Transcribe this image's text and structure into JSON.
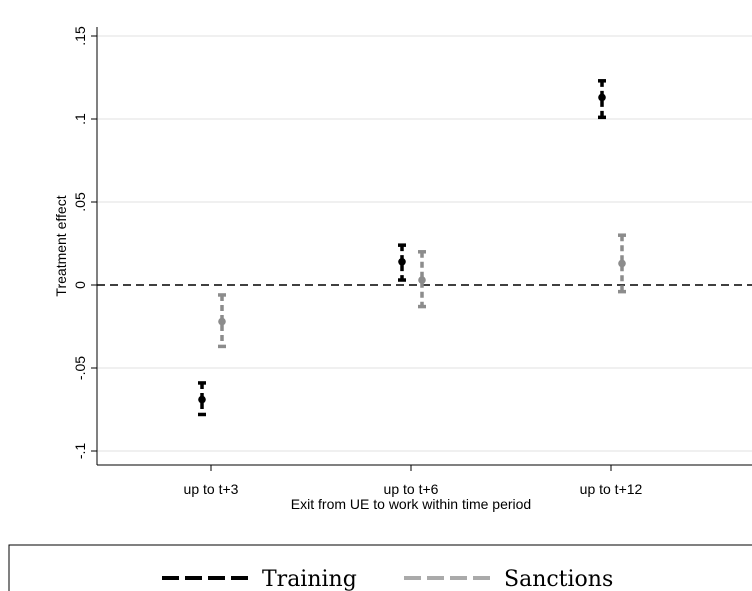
{
  "chart_data": {
    "type": "scatter",
    "title": "",
    "xlabel": "Exit from UE to work within time period",
    "ylabel": "Treatment effect",
    "categories": [
      "up to t+3",
      "up to t+6",
      "up to t+12"
    ],
    "ylim": [
      -0.1,
      0.15
    ],
    "yticks": [
      -0.1,
      -0.05,
      0,
      0.05,
      0.1,
      0.15
    ],
    "ytick_labels": [
      "-.1",
      "-.05",
      "0",
      ".05",
      ".1",
      ".15"
    ],
    "grid": true,
    "reference_line": 0,
    "legend_position": "bottom",
    "series": [
      {
        "name": "Training",
        "color": "#000000",
        "estimates": [
          -0.069,
          0.014,
          0.113
        ],
        "ci_low": [
          -0.078,
          0.003,
          0.101
        ],
        "ci_high": [
          -0.059,
          0.024,
          0.123
        ]
      },
      {
        "name": "Sanctions",
        "color": "#8c8c8c",
        "estimates": [
          -0.022,
          0.003,
          0.013
        ],
        "ci_low": [
          -0.037,
          -0.013,
          -0.004
        ],
        "ci_high": [
          -0.006,
          0.02,
          0.03
        ]
      }
    ]
  }
}
